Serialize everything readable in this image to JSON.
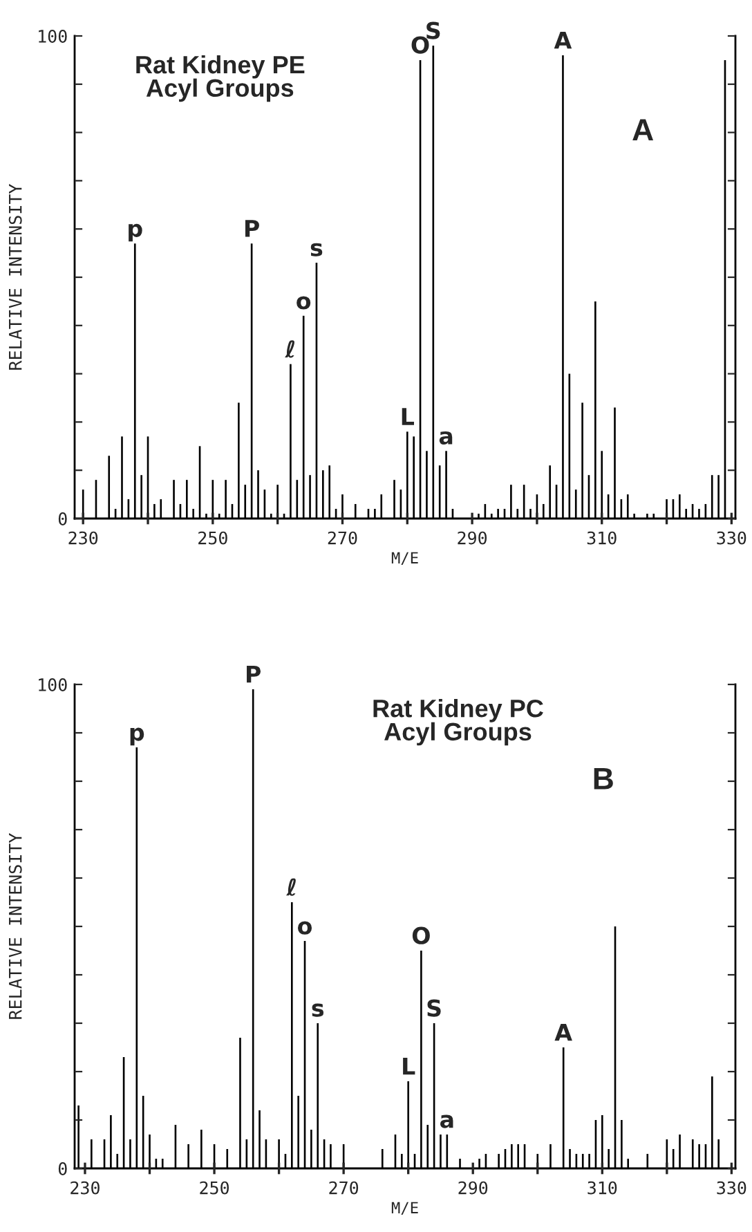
{
  "chart_data": [
    {
      "type": "bar",
      "title": "Rat Kidney PE\nAcyl Groups",
      "xlabel": "M/E",
      "ylabel": "RELATIVE INTENSITY",
      "x": [
        230,
        232,
        234,
        235,
        236,
        237,
        238,
        239,
        240,
        241,
        242,
        244,
        245,
        246,
        247,
        248,
        249,
        250,
        251,
        252,
        253,
        254,
        255,
        256,
        257,
        258,
        259,
        260,
        261,
        262,
        263,
        264,
        265,
        266,
        267,
        268,
        269,
        270,
        272,
        274,
        275,
        276,
        278,
        279,
        280,
        281,
        282,
        283,
        284,
        285,
        286,
        287,
        290,
        291,
        292,
        293,
        294,
        295,
        296,
        297,
        298,
        299,
        300,
        301,
        302,
        303,
        304,
        305,
        306,
        307,
        308,
        309,
        310,
        311,
        312,
        313,
        314,
        315,
        317,
        318,
        320,
        321,
        322,
        323,
        324,
        325,
        326,
        327,
        328,
        329
      ],
      "series": [
        {
          "color": "#000000",
          "values": [
            6,
            8,
            13,
            2,
            17,
            4,
            57,
            9,
            17,
            3,
            4,
            8,
            3,
            8,
            2,
            15,
            1,
            8,
            1,
            8,
            3,
            24,
            7,
            57,
            10,
            6,
            1,
            7,
            1,
            32,
            8,
            42,
            9,
            53,
            10,
            11,
            2,
            5,
            3,
            2,
            2,
            5,
            8,
            6,
            18,
            17,
            95,
            14,
            98,
            11,
            14,
            2,
            null,
            1,
            3,
            1,
            2,
            2,
            7,
            2,
            7,
            2,
            5,
            3,
            11,
            7,
            96,
            30,
            6,
            24,
            9,
            45,
            14,
            5,
            23,
            4,
            5,
            1,
            1,
            1,
            4,
            4,
            5,
            2,
            3,
            2,
            3,
            9,
            9,
            95
          ]
        }
      ],
      "xlim": [
        228.7,
        330.6
      ],
      "ylim": [
        0,
        100
      ],
      "xticks": [
        230,
        {
          "value": 240,
          "label": null
        },
        250,
        {
          "value": 260,
          "label": null
        },
        270,
        {
          "value": 280,
          "label": null
        },
        290,
        {
          "value": 300,
          "label": null
        },
        310,
        {
          "value": 320,
          "label": null
        },
        330
      ],
      "yticks": [
        0,
        {
          "value": 10,
          "label": null
        },
        {
          "value": 20,
          "label": null
        },
        {
          "value": 30,
          "label": null
        },
        {
          "value": 40,
          "label": null
        },
        {
          "value": 50,
          "label": null
        },
        {
          "value": 60,
          "label": null
        },
        {
          "value": 70,
          "label": null
        },
        {
          "value": 80,
          "label": null
        },
        {
          "value": 90,
          "label": null
        },
        100
      ],
      "grid": false,
      "annotations": [
        "A",
        {
          "text": "p",
          "x": 238,
          "y": 57
        },
        {
          "text": "P",
          "x": 256,
          "y": 57
        },
        {
          "text": "ℓ",
          "x": 262,
          "y": 32
        },
        {
          "text": "o",
          "x": 264,
          "y": 42
        },
        {
          "text": "s",
          "x": 266,
          "y": 53
        },
        {
          "text": "L",
          "x": 280,
          "y": 18
        },
        {
          "text": "O",
          "x": 282,
          "y": 95
        },
        {
          "text": "S",
          "x": 284,
          "y": 98
        },
        {
          "text": "a",
          "x": 286,
          "y": 14
        },
        {
          "text": "A",
          "x": 304,
          "y": 96
        }
      ]
    },
    {
      "type": "bar",
      "title": "Rat Kidney PC\nAcyl Groups",
      "xlabel": "M/E",
      "ylabel": "RELATIVE INTENSITY",
      "x": [
        229,
        231,
        233,
        234,
        235,
        236,
        237,
        238,
        239,
        240,
        241,
        242,
        244,
        246,
        248,
        250,
        252,
        254,
        255,
        256,
        257,
        258,
        260,
        261,
        262,
        263,
        264,
        265,
        266,
        267,
        268,
        270,
        276,
        278,
        279,
        280,
        281,
        282,
        283,
        284,
        285,
        286,
        288,
        291,
        292,
        294,
        295,
        296,
        297,
        298,
        300,
        302,
        304,
        305,
        306,
        307,
        308,
        309,
        310,
        311,
        312,
        313,
        314,
        317,
        320,
        321,
        322,
        324,
        325,
        326,
        327,
        328
      ],
      "series": [
        {
          "color": "#000000",
          "values": [
            13,
            6,
            6,
            11,
            3,
            23,
            6,
            87,
            15,
            7,
            2,
            2,
            9,
            5,
            8,
            5,
            4,
            27,
            6,
            99,
            12,
            6,
            6,
            3,
            55,
            15,
            47,
            8,
            30,
            6,
            5,
            5,
            4,
            7,
            3,
            18,
            3,
            45,
            9,
            30,
            7,
            7,
            2,
            2,
            3,
            3,
            4,
            5,
            5,
            5,
            3,
            5,
            25,
            4,
            3,
            3,
            3,
            10,
            11,
            4,
            50,
            10,
            2,
            3,
            6,
            4,
            7,
            6,
            5,
            5,
            19,
            6
          ]
        }
      ],
      "xlim": [
        228.4,
        330.6
      ],
      "ylim": [
        0,
        100
      ],
      "xticks": [
        230,
        {
          "value": 240,
          "label": null
        },
        250,
        {
          "value": 260,
          "label": null
        },
        270,
        {
          "value": 280,
          "label": null
        },
        290,
        {
          "value": 300,
          "label": null
        },
        310,
        {
          "value": 320,
          "label": null
        },
        330
      ],
      "yticks": [
        0,
        {
          "value": 10,
          "label": null
        },
        {
          "value": 20,
          "label": null
        },
        {
          "value": 30,
          "label": null
        },
        {
          "value": 40,
          "label": null
        },
        {
          "value": 50,
          "label": null
        },
        {
          "value": 60,
          "label": null
        },
        {
          "value": 70,
          "label": null
        },
        {
          "value": 80,
          "label": null
        },
        {
          "value": 90,
          "label": null
        },
        100
      ],
      "grid": false,
      "annotations": [
        "B",
        {
          "text": "p",
          "x": 238,
          "y": 87
        },
        {
          "text": "P",
          "x": 256,
          "y": 99
        },
        {
          "text": "ℓ",
          "x": 262,
          "y": 55
        },
        {
          "text": "o",
          "x": 264,
          "y": 47
        },
        {
          "text": "s",
          "x": 266,
          "y": 30
        },
        {
          "text": "L",
          "x": 280,
          "y": 18
        },
        {
          "text": "O",
          "x": 282,
          "y": 45
        },
        {
          "text": "S",
          "x": 284,
          "y": 30
        },
        {
          "text": "a",
          "x": 286,
          "y": 7
        },
        {
          "text": "A",
          "x": 304,
          "y": 25
        }
      ]
    }
  ]
}
